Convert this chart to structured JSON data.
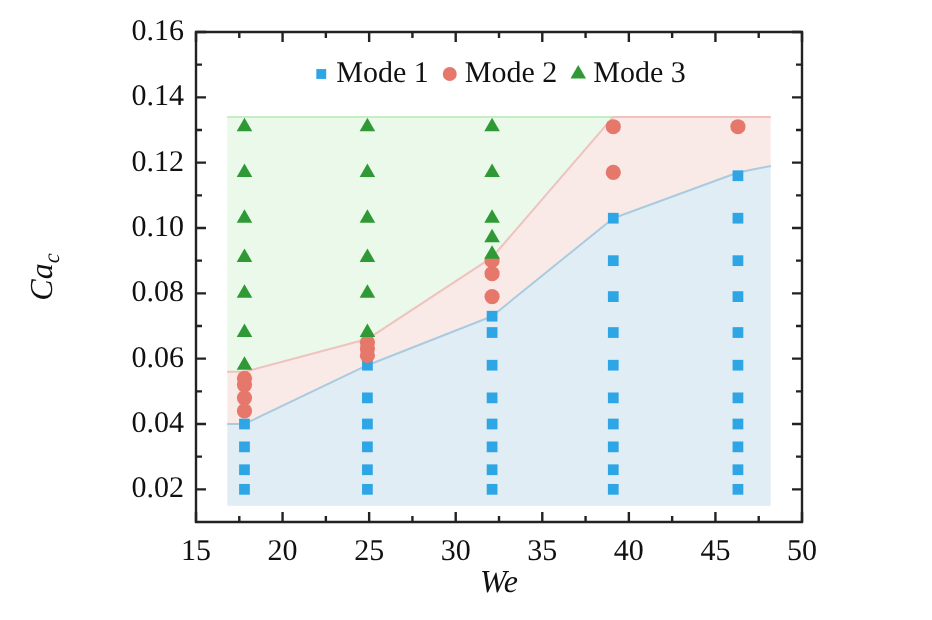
{
  "chart_data": {
    "type": "scatter",
    "xlabel": "We",
    "ylabel": "Ca$_{c}$",
    "xlim": [
      15,
      50
    ],
    "ylim": [
      0.01,
      0.16
    ],
    "xticks": [
      15,
      {
        "value": 17.5,
        "label": null
      },
      20,
      {
        "value": 22.5,
        "label": null
      },
      25,
      {
        "value": 27.5,
        "label": null
      },
      30,
      {
        "value": 32.5,
        "label": null
      },
      35,
      {
        "value": 37.5,
        "label": null
      },
      40,
      {
        "value": 42.5,
        "label": null
      },
      45,
      {
        "value": 47.5,
        "label": null
      },
      50
    ],
    "yticks": [
      {
        "value": 0.02,
        "label": "0.02"
      },
      {
        "value": 0.03,
        "label": null
      },
      {
        "value": 0.04,
        "label": "0.04"
      },
      {
        "value": 0.05,
        "label": null
      },
      {
        "value": 0.06,
        "label": "0.06"
      },
      {
        "value": 0.07,
        "label": null
      },
      {
        "value": 0.08,
        "label": "0.08"
      },
      {
        "value": 0.09,
        "label": null
      },
      {
        "value": 0.1,
        "label": "0.10"
      },
      {
        "value": 0.11,
        "label": null
      },
      {
        "value": 0.12,
        "label": "0.12"
      },
      {
        "value": 0.13,
        "label": null
      },
      {
        "value": 0.14,
        "label": "0.14"
      },
      {
        "value": 0.15,
        "label": null
      },
      {
        "value": 0.16,
        "label": "0.16"
      }
    ],
    "legend": "top",
    "grid": false,
    "series": [
      {
        "type": "line",
        "color": "#a9cbe0",
        "x": [
          16.8,
          17.8,
          24.9,
          32.1,
          39.1,
          46.3,
          48.2
        ],
        "lower": [
          0.015,
          0.015,
          0.015,
          0.015,
          0.015,
          0.015,
          0.015
        ],
        "upper": [
          0.04,
          0.04,
          0.058,
          0.073,
          0.103,
          0.117,
          0.119
        ],
        "values": [
          0.04,
          0.04,
          0.058,
          0.073,
          0.103,
          0.117,
          0.119
        ]
      },
      {
        "type": "line",
        "color": "#efc2bd",
        "x": [
          16.8,
          17.8,
          24.9,
          32.1,
          39.1,
          46.3,
          48.2
        ],
        "lower": [
          0.04,
          0.04,
          0.058,
          0.073,
          0.103,
          0.117,
          0.119
        ],
        "upper": [
          0.056,
          0.056,
          0.066,
          0.091,
          0.134,
          0.134,
          0.134
        ],
        "values": [
          0.056,
          0.056,
          0.066,
          0.091,
          0.134,
          0.134,
          0.134
        ]
      },
      {
        "type": "line",
        "color": "#c4eec4",
        "x": [
          16.8,
          17.8,
          24.9,
          32.1,
          39.1
        ],
        "lower": [
          0.056,
          0.056,
          0.066,
          0.091,
          0.134
        ],
        "upper": [
          0.134,
          0.134,
          0.134,
          0.134,
          0.134
        ],
        "values": [
          0.134,
          0.134,
          0.134,
          0.134,
          0.134
        ]
      },
      {
        "name": "Mode 1",
        "marker": "square",
        "color": "#2ea6e5",
        "x": [
          17.8,
          17.8,
          17.8,
          17.8,
          24.9,
          24.9,
          24.9,
          24.9,
          24.9,
          24.9,
          32.1,
          32.1,
          32.1,
          32.1,
          32.1,
          32.1,
          32.1,
          32.1,
          39.1,
          39.1,
          39.1,
          39.1,
          39.1,
          39.1,
          39.1,
          39.1,
          39.1,
          39.1,
          46.3,
          46.3,
          46.3,
          46.3,
          46.3,
          46.3,
          46.3,
          46.3,
          46.3,
          46.3,
          46.3
        ],
        "values": [
          0.04,
          0.033,
          0.026,
          0.02,
          0.058,
          0.048,
          0.04,
          0.033,
          0.026,
          0.02,
          0.073,
          0.068,
          0.058,
          0.048,
          0.04,
          0.033,
          0.026,
          0.02,
          0.103,
          0.09,
          0.079,
          0.068,
          0.058,
          0.048,
          0.04,
          0.033,
          0.026,
          0.02,
          0.116,
          0.103,
          0.09,
          0.079,
          0.068,
          0.058,
          0.048,
          0.04,
          0.033,
          0.026,
          0.02
        ]
      },
      {
        "name": "Mode 2",
        "marker": "circle",
        "color": "#e5776b",
        "x": [
          17.8,
          17.8,
          17.8,
          17.8,
          24.9,
          24.9,
          24.9,
          32.1,
          32.1,
          32.1,
          39.1,
          39.1,
          46.3
        ],
        "values": [
          0.054,
          0.052,
          0.048,
          0.044,
          0.065,
          0.063,
          0.061,
          0.09,
          0.086,
          0.079,
          0.131,
          0.117,
          0.131
        ]
      },
      {
        "name": "Mode 3",
        "marker": "triangle",
        "color": "#2f9a35",
        "x": [
          17.8,
          17.8,
          17.8,
          17.8,
          17.8,
          17.8,
          17.8,
          24.9,
          24.9,
          24.9,
          24.9,
          24.9,
          24.9,
          32.1,
          32.1,
          32.1,
          32.1,
          32.1
        ],
        "values": [
          0.131,
          0.117,
          0.103,
          0.091,
          0.08,
          0.068,
          0.058,
          0.131,
          0.117,
          0.103,
          0.091,
          0.08,
          0.068,
          0.131,
          0.117,
          0.103,
          0.097,
          0.092
        ]
      }
    ]
  }
}
